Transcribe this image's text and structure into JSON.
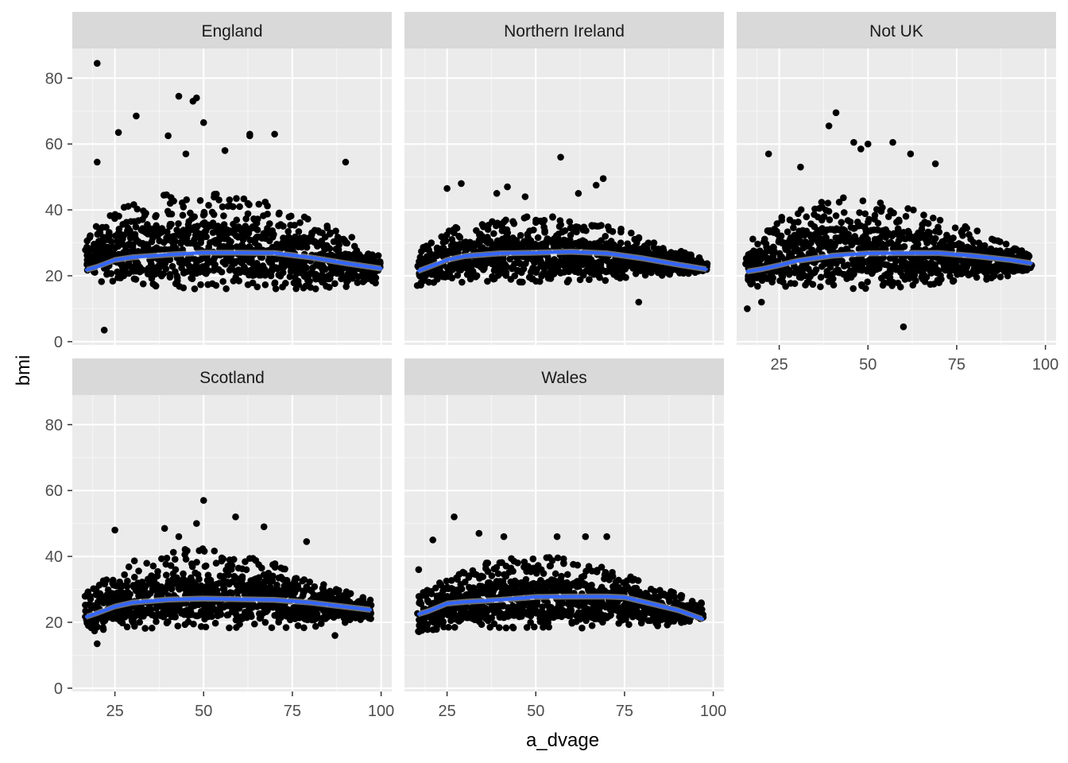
{
  "chart_data": {
    "type": "scatter",
    "title": "",
    "xlabel": "a_dvage",
    "ylabel": "bmi",
    "xlim": [
      13,
      103
    ],
    "ylim": [
      -1,
      89
    ],
    "x_ticks": [
      25,
      50,
      75,
      100
    ],
    "y_ticks": [
      0,
      20,
      40,
      60,
      80
    ],
    "grid": true,
    "legend": "none",
    "colors": {
      "panel_bg": "#EBEBEB",
      "strip_bg": "#D9D9D9",
      "grid_major": "#FFFFFF",
      "points": "#000000",
      "smooth_line": "#3366FF",
      "smooth_ribbon": "#C8C8C8"
    },
    "facets": [
      {
        "name": "England",
        "band": [
          [
            17,
            19,
            33
          ],
          [
            22,
            18,
            38
          ],
          [
            30,
            17,
            42
          ],
          [
            40,
            16,
            45
          ],
          [
            50,
            16,
            46
          ],
          [
            60,
            16,
            45
          ],
          [
            70,
            16,
            42
          ],
          [
            80,
            16,
            38
          ],
          [
            90,
            16,
            33
          ],
          [
            100,
            18,
            26
          ]
        ],
        "outliers": [
          [
            20,
            84.5
          ],
          [
            22,
            3.5
          ],
          [
            43,
            74.5
          ],
          [
            47,
            73
          ],
          [
            48,
            74
          ],
          [
            50,
            66.5
          ],
          [
            31,
            68.5
          ],
          [
            26,
            63.5
          ],
          [
            63,
            63
          ],
          [
            40,
            62.5
          ],
          [
            90,
            54.5
          ],
          [
            20,
            54.5
          ],
          [
            45,
            57
          ],
          [
            56,
            58
          ],
          [
            63,
            62.5
          ],
          [
            70,
            63
          ]
        ],
        "smooth": [
          [
            17,
            21.8
          ],
          [
            20,
            22.7
          ],
          [
            25,
            24.8
          ],
          [
            30,
            25.6
          ],
          [
            40,
            26.4
          ],
          [
            50,
            27.0
          ],
          [
            60,
            27.0
          ],
          [
            70,
            26.9
          ],
          [
            80,
            25.6
          ],
          [
            90,
            23.8
          ],
          [
            100,
            22.2
          ]
        ]
      },
      {
        "name": "Northern Ireland",
        "band": [
          [
            17,
            17,
            28
          ],
          [
            25,
            18,
            34
          ],
          [
            35,
            18,
            37
          ],
          [
            45,
            18,
            38
          ],
          [
            55,
            18,
            38
          ],
          [
            65,
            18,
            36
          ],
          [
            75,
            19,
            34
          ],
          [
            85,
            20,
            30
          ],
          [
            98,
            21,
            25
          ]
        ],
        "outliers": [
          [
            57,
            56
          ],
          [
            69,
            49.5
          ],
          [
            67,
            47.5
          ],
          [
            25,
            46.5
          ],
          [
            29,
            48
          ],
          [
            42,
            47
          ],
          [
            62,
            45
          ],
          [
            79,
            12
          ],
          [
            39,
            45
          ],
          [
            47,
            44
          ]
        ],
        "smooth": [
          [
            17,
            21.5
          ],
          [
            20,
            22.7
          ],
          [
            25,
            24.8
          ],
          [
            30,
            26.0
          ],
          [
            40,
            26.8
          ],
          [
            50,
            27.0
          ],
          [
            60,
            27.3
          ],
          [
            70,
            26.8
          ],
          [
            80,
            25.3
          ],
          [
            90,
            23.4
          ],
          [
            98,
            22.0
          ]
        ]
      },
      {
        "name": "Not UK",
        "band": [
          [
            16,
            17,
            30
          ],
          [
            25,
            16,
            38
          ],
          [
            35,
            16,
            42
          ],
          [
            45,
            16,
            44
          ],
          [
            55,
            16,
            42
          ],
          [
            65,
            16,
            40
          ],
          [
            75,
            17,
            36
          ],
          [
            85,
            19,
            32
          ],
          [
            96,
            21,
            26
          ]
        ],
        "outliers": [
          [
            41,
            69.5
          ],
          [
            39,
            65.5
          ],
          [
            46,
            60.5
          ],
          [
            48,
            58.5
          ],
          [
            50,
            60
          ],
          [
            57,
            60.5
          ],
          [
            16,
            10
          ],
          [
            20,
            12
          ],
          [
            60,
            4.5
          ],
          [
            69,
            54
          ],
          [
            22,
            57
          ],
          [
            31,
            53
          ],
          [
            62,
            57
          ]
        ],
        "smooth": [
          [
            16,
            21.3
          ],
          [
            20,
            22.0
          ],
          [
            25,
            23.2
          ],
          [
            30,
            24.5
          ],
          [
            40,
            26.1
          ],
          [
            50,
            26.8
          ],
          [
            60,
            26.9
          ],
          [
            70,
            26.9
          ],
          [
            80,
            26.0
          ],
          [
            90,
            24.8
          ],
          [
            96,
            23.8
          ]
        ]
      },
      {
        "name": "Scotland",
        "band": [
          [
            17,
            17,
            29
          ],
          [
            25,
            18,
            36
          ],
          [
            35,
            18,
            41
          ],
          [
            45,
            18,
            43
          ],
          [
            55,
            18,
            42
          ],
          [
            65,
            18,
            40
          ],
          [
            75,
            18,
            36
          ],
          [
            85,
            19,
            31
          ],
          [
            97,
            21,
            27
          ]
        ],
        "outliers": [
          [
            50,
            57
          ],
          [
            48,
            50
          ],
          [
            59,
            52
          ],
          [
            67,
            49
          ],
          [
            25,
            48
          ],
          [
            39,
            48.5
          ],
          [
            20,
            13.5
          ],
          [
            87,
            16
          ],
          [
            79,
            44.5
          ],
          [
            43,
            46
          ]
        ],
        "smooth": [
          [
            17,
            21.7
          ],
          [
            20,
            22.8
          ],
          [
            25,
            24.8
          ],
          [
            30,
            26.0
          ],
          [
            40,
            26.9
          ],
          [
            50,
            27.2
          ],
          [
            60,
            27.0
          ],
          [
            70,
            26.8
          ],
          [
            80,
            26.0
          ],
          [
            90,
            24.7
          ],
          [
            97,
            23.8
          ]
        ]
      },
      {
        "name": "Wales",
        "band": [
          [
            17,
            17,
            29
          ],
          [
            25,
            18,
            34
          ],
          [
            35,
            18,
            38
          ],
          [
            45,
            18,
            40
          ],
          [
            55,
            18,
            40
          ],
          [
            65,
            18,
            39
          ],
          [
            75,
            18,
            35
          ],
          [
            85,
            19,
            31
          ],
          [
            97,
            20,
            26
          ]
        ],
        "outliers": [
          [
            27,
            52
          ],
          [
            34,
            47
          ],
          [
            21,
            45
          ],
          [
            41,
            46
          ],
          [
            56,
            46
          ],
          [
            64,
            46
          ],
          [
            70,
            46
          ],
          [
            17,
            36
          ]
        ],
        "smooth": [
          [
            17,
            22.5
          ],
          [
            20,
            23.5
          ],
          [
            25,
            25.7
          ],
          [
            30,
            26.2
          ],
          [
            40,
            26.8
          ],
          [
            50,
            27.7
          ],
          [
            60,
            27.8
          ],
          [
            70,
            27.8
          ],
          [
            75,
            27.6
          ],
          [
            80,
            26.3
          ],
          [
            90,
            23.7
          ],
          [
            97,
            21.0
          ]
        ]
      }
    ]
  }
}
